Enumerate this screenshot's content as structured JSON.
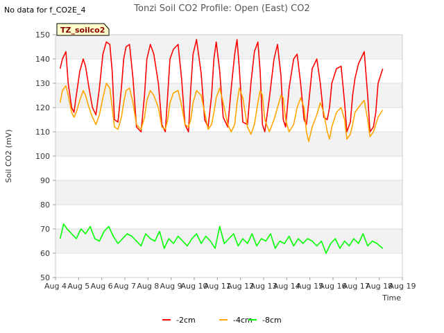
{
  "note": "No data for f_CO2E_4",
  "chart_data": {
    "type": "line",
    "title": "Tonzi Soil CO2 Profile: Open (East) CO2",
    "xlabel": "Time",
    "ylabel": "Soil CO2 (mV)",
    "tag": "TZ_soilco2",
    "xlim": [
      4,
      19
    ],
    "ylim": [
      50,
      150
    ],
    "x_ticks": [
      "Aug 4",
      "Aug 5",
      "Aug 6",
      "Aug 7",
      "Aug 8",
      "Aug 9",
      "Aug 10",
      "Aug 11",
      "Aug 12",
      "Aug 13",
      "Aug 14",
      "Aug 15",
      "Aug 16",
      "Aug 17",
      "Aug 18",
      "Aug 19"
    ],
    "y_ticks": [
      "50",
      "60",
      "70",
      "80",
      "90",
      "100",
      "110",
      "120",
      "130",
      "140",
      "150"
    ],
    "x_units": "day of August",
    "series": [
      {
        "name": "-2cm",
        "color": "#ff0000",
        "x": [
          4.2,
          4.3,
          4.45,
          4.55,
          4.7,
          4.8,
          4.9,
          5.05,
          5.2,
          5.3,
          5.45,
          5.6,
          5.75,
          5.9,
          6.05,
          6.2,
          6.35,
          6.45,
          6.55,
          6.7,
          6.85,
          6.95,
          7.05,
          7.2,
          7.35,
          7.5,
          7.7,
          7.85,
          7.95,
          8.1,
          8.25,
          8.45,
          8.6,
          8.75,
          8.85,
          8.95,
          9.1,
          9.3,
          9.45,
          9.6,
          9.75,
          9.85,
          9.95,
          10.1,
          10.3,
          10.45,
          10.6,
          10.75,
          10.85,
          10.95,
          11.1,
          11.25,
          11.45,
          11.6,
          11.75,
          11.85,
          11.95,
          12.1,
          12.3,
          12.45,
          12.6,
          12.75,
          12.85,
          12.95,
          13.05,
          13.25,
          13.45,
          13.6,
          13.75,
          13.85,
          13.95,
          14.1,
          14.3,
          14.45,
          14.6,
          14.75,
          14.85,
          14.95,
          15.1,
          15.3,
          15.45,
          15.6,
          15.75,
          15.85,
          15.95,
          16.15,
          16.35,
          16.5,
          16.6,
          16.75,
          16.85,
          16.95,
          17.1,
          17.35,
          17.5,
          17.6,
          17.75,
          17.85,
          17.95,
          18.15
        ],
        "y": [
          136,
          140,
          143,
          130,
          120,
          118,
          125,
          135,
          140,
          137,
          128,
          120,
          117,
          128,
          142,
          147,
          146,
          135,
          115,
          114,
          128,
          140,
          145,
          146,
          132,
          112,
          110,
          125,
          140,
          146,
          142,
          130,
          113,
          110,
          125,
          140,
          144,
          146,
          132,
          113,
          110,
          128,
          142,
          148,
          134,
          115,
          112,
          125,
          140,
          147,
          135,
          116,
          112,
          128,
          142,
          148,
          136,
          114,
          113,
          130,
          143,
          147,
          135,
          113,
          110,
          124,
          140,
          146,
          133,
          115,
          112,
          128,
          140,
          142,
          130,
          115,
          113,
          122,
          136,
          140,
          130,
          116,
          115,
          120,
          130,
          136,
          137,
          122,
          110,
          114,
          125,
          132,
          138,
          143,
          125,
          110,
          112,
          118,
          130,
          136
        ]
      },
      {
        "name": "-4cm",
        "color": "#ffa500",
        "x": [
          4.2,
          4.3,
          4.45,
          4.55,
          4.7,
          4.8,
          4.9,
          5.05,
          5.2,
          5.3,
          5.45,
          5.6,
          5.75,
          5.9,
          6.05,
          6.2,
          6.35,
          6.45,
          6.55,
          6.7,
          6.85,
          6.95,
          7.05,
          7.2,
          7.35,
          7.5,
          7.7,
          7.85,
          7.95,
          8.1,
          8.25,
          8.45,
          8.6,
          8.75,
          8.85,
          8.95,
          9.1,
          9.3,
          9.45,
          9.6,
          9.75,
          9.85,
          9.95,
          10.1,
          10.3,
          10.45,
          10.6,
          10.75,
          10.85,
          10.95,
          11.1,
          11.25,
          11.45,
          11.6,
          11.75,
          11.85,
          11.95,
          12.1,
          12.3,
          12.45,
          12.6,
          12.75,
          12.85,
          12.95,
          13.05,
          13.25,
          13.45,
          13.6,
          13.75,
          13.85,
          13.95,
          14.1,
          14.3,
          14.45,
          14.6,
          14.75,
          14.85,
          14.95,
          15.1,
          15.3,
          15.45,
          15.6,
          15.75,
          15.85,
          15.95,
          16.15,
          16.35,
          16.5,
          16.6,
          16.75,
          16.85,
          16.95,
          17.1,
          17.35,
          17.5,
          17.6,
          17.75,
          17.85,
          17.95,
          18.15
        ],
        "y": [
          122,
          127,
          129,
          125,
          118,
          116,
          118,
          123,
          127,
          125,
          120,
          116,
          113,
          117,
          124,
          130,
          128,
          120,
          112,
          111,
          116,
          122,
          127,
          128,
          122,
          113,
          111,
          116,
          123,
          127,
          125,
          120,
          112,
          111,
          115,
          122,
          126,
          127,
          121,
          113,
          112,
          115,
          122,
          127,
          125,
          118,
          111,
          113,
          118,
          124,
          128,
          122,
          113,
          110,
          113,
          122,
          128,
          124,
          112,
          109,
          113,
          122,
          127,
          125,
          115,
          110,
          115,
          120,
          125,
          124,
          115,
          110,
          113,
          120,
          124,
          120,
          110,
          106,
          112,
          117,
          122,
          118,
          110,
          107,
          112,
          118,
          120,
          115,
          107,
          109,
          113,
          118,
          120,
          123,
          115,
          108,
          110,
          113,
          116,
          119
        ]
      },
      {
        "name": "-8cm",
        "color": "#00ff00",
        "x": [
          4.2,
          4.35,
          4.5,
          4.7,
          4.9,
          5.1,
          5.3,
          5.5,
          5.7,
          5.9,
          6.1,
          6.3,
          6.5,
          6.7,
          6.9,
          7.1,
          7.3,
          7.5,
          7.7,
          7.9,
          8.1,
          8.3,
          8.5,
          8.7,
          8.9,
          9.1,
          9.3,
          9.5,
          9.7,
          9.9,
          10.1,
          10.3,
          10.5,
          10.7,
          10.9,
          11.1,
          11.3,
          11.5,
          11.7,
          11.9,
          12.1,
          12.3,
          12.5,
          12.7,
          12.9,
          13.1,
          13.3,
          13.5,
          13.7,
          13.9,
          14.1,
          14.3,
          14.5,
          14.7,
          14.9,
          15.1,
          15.3,
          15.5,
          15.7,
          15.9,
          16.1,
          16.3,
          16.5,
          16.7,
          16.9,
          17.1,
          17.3,
          17.5,
          17.7,
          17.9,
          18.15
        ],
        "y": [
          66,
          72,
          70,
          68,
          66,
          70,
          68,
          71,
          66,
          65,
          69,
          71,
          67,
          64,
          66,
          68,
          67,
          65,
          63,
          68,
          66,
          65,
          69,
          62,
          66,
          64,
          67,
          65,
          63,
          66,
          68,
          64,
          67,
          65,
          62,
          71,
          64,
          66,
          68,
          63,
          66,
          64,
          68,
          63,
          66,
          65,
          68,
          62,
          65,
          64,
          67,
          63,
          66,
          64,
          66,
          65,
          63,
          65,
          60,
          64,
          66,
          62,
          65,
          63,
          66,
          64,
          68,
          63,
          65,
          64,
          62
        ]
      }
    ],
    "legend": [
      "-2cm",
      "-4cm",
      "-8cm"
    ],
    "legend_position": "bottom-center"
  }
}
